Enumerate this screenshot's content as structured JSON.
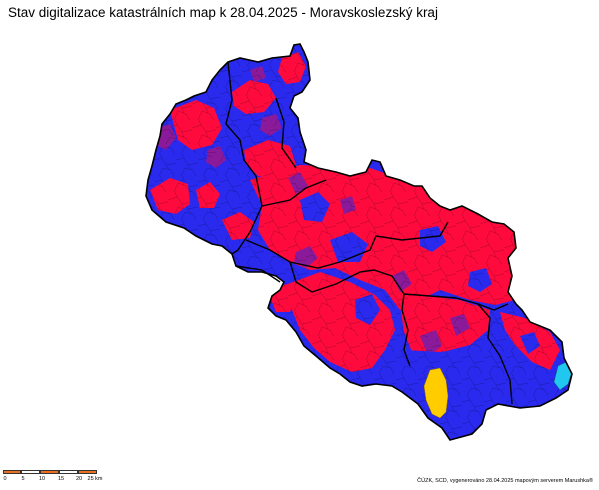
{
  "title": "Stav digitalizace katastrálních map k 28.04.2025 - Moravskoslezský kraj",
  "scale": {
    "ticks": [
      "0",
      "5",
      "10",
      "15",
      "20",
      "25 km"
    ],
    "colors": [
      "#e8701f",
      "#ffffff"
    ]
  },
  "credit": "ČÚZK, SCD, vygenerováno 28.04.2025 mapovým serverem Marushka®",
  "colors": {
    "red": "#ff0a3c",
    "blue": "#2a2aee",
    "purple": "#8a1a9a",
    "yellow": "#ffcc00",
    "cyan": "#20c8f0",
    "border": "#000000"
  }
}
